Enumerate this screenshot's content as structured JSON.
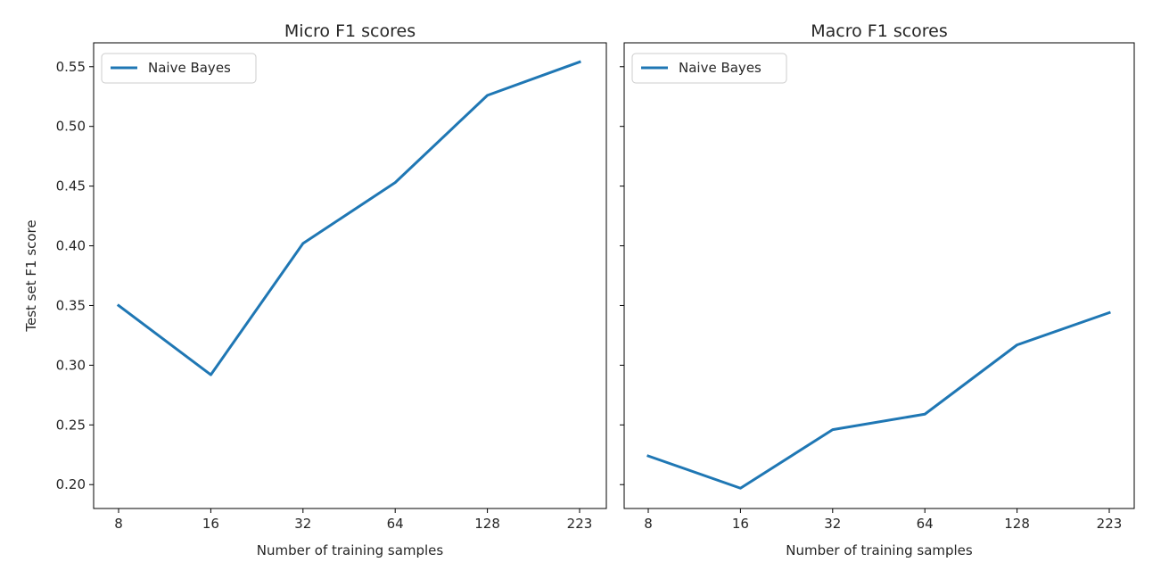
{
  "chart_data": [
    {
      "type": "line",
      "title": "Micro F1 scores",
      "xlabel": "Number of training samples",
      "ylabel": "Test set F1 score",
      "categories": [
        "8",
        "16",
        "32",
        "64",
        "128",
        "223"
      ],
      "series": [
        {
          "name": "Naive Bayes",
          "values": [
            0.35,
            0.292,
            0.402,
            0.453,
            0.526,
            0.554
          ]
        }
      ],
      "ylim": [
        0.18,
        0.57
      ],
      "yticks": [
        "0.20",
        "0.25",
        "0.30",
        "0.35",
        "0.40",
        "0.45",
        "0.50",
        "0.55"
      ],
      "legend": "top-left",
      "grid": false
    },
    {
      "type": "line",
      "title": "Macro F1 scores",
      "xlabel": "Number of training samples",
      "ylabel": "",
      "categories": [
        "8",
        "16",
        "32",
        "64",
        "128",
        "223"
      ],
      "series": [
        {
          "name": "Naive Bayes",
          "values": [
            0.224,
            0.197,
            0.246,
            0.259,
            0.317,
            0.344
          ]
        }
      ],
      "ylim": [
        0.18,
        0.57
      ],
      "yticks": [],
      "legend": "top-left",
      "grid": false
    }
  ],
  "colors": {
    "series": "#1f77b4"
  }
}
